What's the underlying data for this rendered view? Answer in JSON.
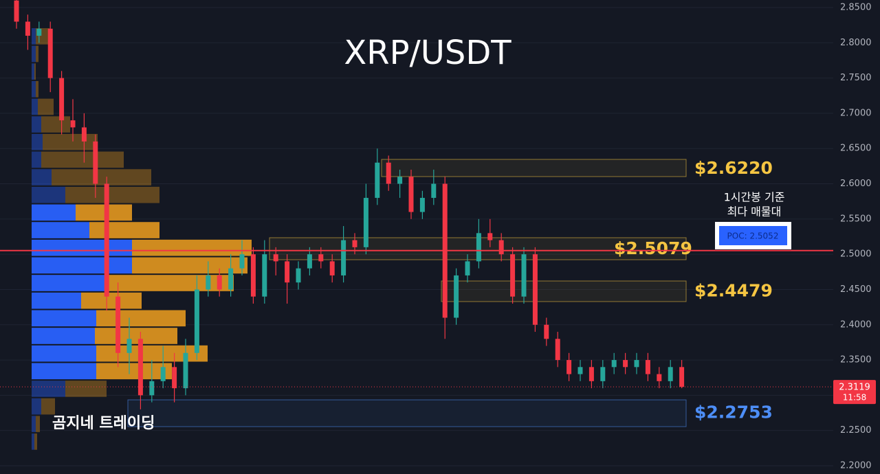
{
  "chart_data": {
    "type": "candlestick",
    "title": "XRP/USDT",
    "watermark": "곰지네 트레이딩",
    "open": [
      2.86,
      2.83,
      2.81,
      2.82,
      2.75,
      2.69,
      2.68,
      2.66,
      2.6,
      2.44,
      2.36,
      2.38,
      2.3,
      2.32,
      2.34,
      2.31,
      2.36,
      2.45,
      2.47,
      2.45,
      2.48,
      2.5,
      2.44,
      2.5,
      2.49,
      2.46,
      2.48,
      2.5,
      2.49,
      2.47,
      2.52,
      2.51,
      2.58,
      2.63,
      2.6,
      2.61,
      2.56,
      2.58,
      2.6,
      2.41,
      2.47,
      2.49,
      2.53,
      2.52,
      2.5,
      2.44,
      2.5,
      2.4,
      2.38,
      2.35,
      2.33,
      2.34,
      2.32,
      2.34,
      2.35,
      2.34,
      2.35,
      2.33,
      2.32,
      2.34
    ],
    "high": [
      2.87,
      2.84,
      2.83,
      2.83,
      2.76,
      2.72,
      2.7,
      2.67,
      2.61,
      2.46,
      2.41,
      2.39,
      2.35,
      2.37,
      2.36,
      2.38,
      2.47,
      2.49,
      2.48,
      2.5,
      2.52,
      2.51,
      2.52,
      2.51,
      2.5,
      2.49,
      2.51,
      2.51,
      2.5,
      2.54,
      2.53,
      2.6,
      2.65,
      2.64,
      2.62,
      2.62,
      2.59,
      2.62,
      2.61,
      2.48,
      2.5,
      2.55,
      2.55,
      2.53,
      2.51,
      2.51,
      2.51,
      2.41,
      2.39,
      2.36,
      2.35,
      2.35,
      2.35,
      2.36,
      2.36,
      2.36,
      2.36,
      2.34,
      2.35,
      2.35
    ],
    "low": [
      2.82,
      2.79,
      2.8,
      2.73,
      2.67,
      2.66,
      2.63,
      2.58,
      2.42,
      2.34,
      2.33,
      2.28,
      2.29,
      2.31,
      2.29,
      2.3,
      2.35,
      2.44,
      2.44,
      2.44,
      2.47,
      2.43,
      2.43,
      2.47,
      2.43,
      2.45,
      2.47,
      2.48,
      2.46,
      2.46,
      2.5,
      2.5,
      2.57,
      2.59,
      2.58,
      2.55,
      2.55,
      2.57,
      2.38,
      2.4,
      2.46,
      2.48,
      2.51,
      2.49,
      2.43,
      2.43,
      2.39,
      2.37,
      2.34,
      2.32,
      2.32,
      2.31,
      2.31,
      2.33,
      2.33,
      2.33,
      2.32,
      2.31,
      2.31,
      2.31
    ],
    "close": [
      2.83,
      2.81,
      2.82,
      2.75,
      2.69,
      2.68,
      2.66,
      2.6,
      2.44,
      2.36,
      2.38,
      2.3,
      2.32,
      2.34,
      2.31,
      2.36,
      2.45,
      2.47,
      2.45,
      2.48,
      2.5,
      2.44,
      2.5,
      2.49,
      2.46,
      2.48,
      2.5,
      2.49,
      2.47,
      2.52,
      2.51,
      2.58,
      2.63,
      2.6,
      2.61,
      2.56,
      2.58,
      2.6,
      2.41,
      2.47,
      2.49,
      2.53,
      2.52,
      2.5,
      2.44,
      2.5,
      2.4,
      2.38,
      2.35,
      2.33,
      2.34,
      2.32,
      2.34,
      2.35,
      2.34,
      2.35,
      2.33,
      2.32,
      2.34,
      2.3119
    ],
    "up_color": "#26a69a",
    "down_color": "#f23645",
    "ylim": [
      2.1883,
      2.8607
    ],
    "yticks": [
      {
        "value": 2.2,
        "label": "2.2000"
      },
      {
        "value": 2.25,
        "label": "2.2500"
      },
      {
        "value": 2.3,
        "label": "2.3000"
      },
      {
        "value": 2.35,
        "label": "2.3500"
      },
      {
        "value": 2.4,
        "label": "2.4000"
      },
      {
        "value": 2.45,
        "label": "2.4500"
      },
      {
        "value": 2.5,
        "label": "2.5000"
      },
      {
        "value": 2.55,
        "label": "2.5500"
      },
      {
        "value": 2.6,
        "label": "2.6000"
      },
      {
        "value": 2.65,
        "label": "2.6500"
      },
      {
        "value": 2.7,
        "label": "2.7000"
      },
      {
        "value": 2.75,
        "label": "2.7500"
      },
      {
        "value": 2.8,
        "label": "2.8000"
      },
      {
        "value": 2.85,
        "label": "2.8500"
      }
    ],
    "grid": true,
    "current_price_timer": "11:58",
    "volume_profile": {
      "bins": [
        2.2217,
        2.2467,
        2.2717,
        2.2967,
        2.3217,
        2.3467,
        2.3717,
        2.3967,
        2.4217,
        2.4467,
        2.4717,
        2.4967,
        2.5217,
        2.5467,
        2.5717,
        2.5967,
        2.6217,
        2.6467,
        2.6717,
        2.6967,
        2.7217,
        2.7467,
        2.7717,
        2.7967,
        2.8217
      ],
      "buy": [
        4,
        6,
        14,
        49,
        94,
        94,
        92,
        94,
        72,
        109,
        146,
        146,
        84,
        64,
        49,
        29,
        14,
        16,
        14,
        9,
        6,
        4,
        6,
        6
      ],
      "sell": [
        4,
        6,
        20,
        60,
        110,
        162,
        120,
        130,
        88,
        185,
        168,
        174,
        102,
        82,
        137,
        145,
        120,
        80,
        42,
        23,
        4,
        2,
        4,
        20
      ],
      "buy_color": "#2962ff",
      "sell_color": "#f0a01e",
      "value_area": [
        2.3198,
        2.5732
      ]
    },
    "zones": [
      {
        "label": "$2.6220",
        "value": 2.622,
        "top": 2.6346,
        "bottom": 2.6102,
        "color": "#f5c542"
      },
      {
        "label": "$2.5079",
        "value": 2.5079,
        "top": 2.5235,
        "bottom": 2.4923,
        "color": "#f5c542"
      },
      {
        "label": "$2.4479",
        "value": 2.4479,
        "top": 2.4621,
        "bottom": 2.4329,
        "color": "#f5c542"
      },
      {
        "label": "$2.2753",
        "value": 2.2753,
        "top": 2.2935,
        "bottom": 2.2555,
        "color": "#4d8ef7"
      }
    ],
    "poc": {
      "label": "POC: 2.5052",
      "value": 2.5052,
      "color": "#f23645",
      "note": [
        "1시간봉 기준",
        "최다 매물대"
      ]
    }
  }
}
